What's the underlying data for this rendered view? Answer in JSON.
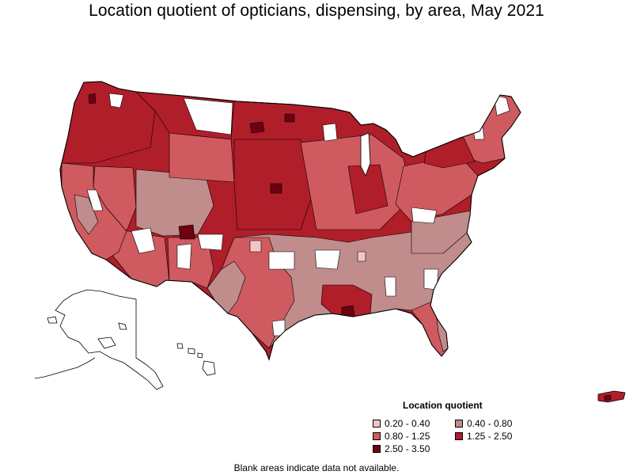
{
  "title": "Location quotient of opticians, dispensing, by area, May 2021",
  "legend": {
    "title": "Location quotient",
    "items": [
      {
        "label": "0.20 - 0.40",
        "color": "#f2c6c6"
      },
      {
        "label": "0.40 - 0.80",
        "color": "#c08c8c"
      },
      {
        "label": "0.80 - 1.25",
        "color": "#cf5a5f"
      },
      {
        "label": "1.25 - 2.50",
        "color": "#b01e2a"
      },
      {
        "label": "2.50 - 3.50",
        "color": "#6e0010"
      }
    ]
  },
  "no_data_color": "#ffffff",
  "footnote": "Blank areas indicate data not available."
}
